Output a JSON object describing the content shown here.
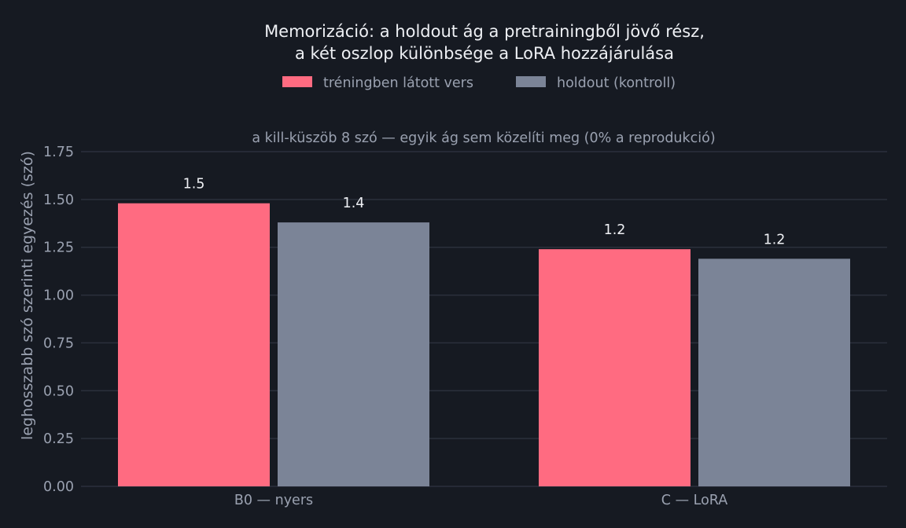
{
  "chart_data": {
    "type": "bar",
    "title_lines": [
      "Memorizáció: a holdout ág a pretrainingből jövő rész,",
      "a két oszlop különbsége a LoRA hozzájárulása"
    ],
    "subtitle": "a kill-küszöb 8 szó — egyik ág sem közelíti meg (0% a reprodukció)",
    "xlabel": "",
    "ylabel": "leghosszabb szó szerinti egyezés (szó)",
    "ylim": [
      0,
      1.75
    ],
    "yticks": [
      0,
      0.25,
      0.5,
      0.75,
      1.0,
      1.25,
      1.5,
      1.75
    ],
    "ytick_labels": [
      "0.00",
      "0.25",
      "0.50",
      "0.75",
      "1.00",
      "1.25",
      "1.50",
      "1.75"
    ],
    "categories": [
      "B0 — nyers",
      "C — LoRA"
    ],
    "series": [
      {
        "name": "tréningben látott vers",
        "color": "#ff6b81",
        "values": [
          1.48,
          1.24
        ],
        "labels": [
          "1.5",
          "1.2"
        ]
      },
      {
        "name": "holdout (kontroll)",
        "color": "#7b8497",
        "values": [
          1.38,
          1.19
        ],
        "labels": [
          "1.4",
          "1.2"
        ]
      }
    ],
    "legend_position": "top-center",
    "grid": true
  }
}
